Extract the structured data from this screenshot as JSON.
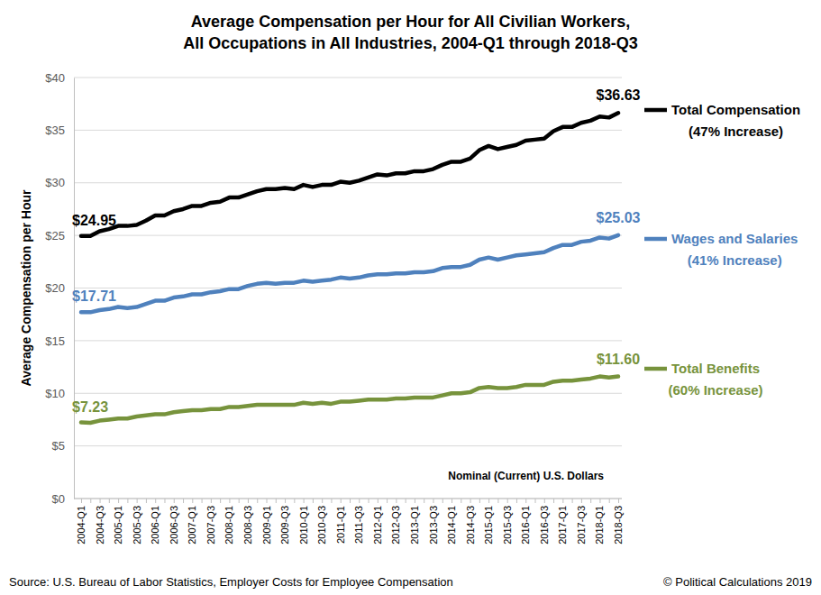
{
  "chart_data": {
    "type": "line",
    "title": [
      "Average Compensation per Hour for All Civilian Workers,",
      "All Occupations in All Industries, 2004-Q1 through 2018-Q3"
    ],
    "y_label": "Average Compensation per Hour",
    "units_note": "Nominal (Current) U.S. Dollars",
    "source": "Source: U.S. Bureau of Labor Statistics, Employer Costs for Employee Compensation",
    "credit": "© Political Calculations 2019",
    "categories": [
      "2004-Q1",
      null,
      "2004-Q3",
      null,
      "2005-Q1",
      null,
      "2005-Q3",
      null,
      "2006-Q1",
      null,
      "2006-Q3",
      null,
      "2007-Q1",
      null,
      "2007-Q3",
      null,
      "2008-Q1",
      null,
      "2008-Q3",
      null,
      "2009-Q1",
      null,
      "2009-Q3",
      null,
      "2010-Q1",
      null,
      "2010-Q3",
      null,
      "2011-Q1",
      null,
      "2011-Q3",
      null,
      "2012-Q1",
      null,
      "2012-Q3",
      null,
      "2013-Q1",
      null,
      "2013-Q3",
      null,
      "2014-Q1",
      null,
      "2014-Q3",
      null,
      "2015-Q1",
      null,
      "2015-Q3",
      null,
      "2016-Q1",
      null,
      "2016-Q3",
      null,
      "2017-Q1",
      null,
      "2017-Q3",
      null,
      "2018-Q1",
      null,
      "2018-Q3"
    ],
    "series": [
      {
        "name": "Total Compensation",
        "annotation": "(47% Increase)",
        "color": "#000000",
        "values": [
          24.95,
          24.95,
          25.4,
          25.6,
          25.9,
          25.9,
          26.0,
          26.4,
          26.9,
          26.9,
          27.3,
          27.5,
          27.8,
          27.8,
          28.1,
          28.2,
          28.6,
          28.6,
          28.9,
          29.2,
          29.4,
          29.4,
          29.5,
          29.4,
          29.8,
          29.6,
          29.8,
          29.8,
          30.1,
          30.0,
          30.2,
          30.5,
          30.8,
          30.7,
          30.9,
          30.9,
          31.1,
          31.1,
          31.3,
          31.7,
          32.0,
          32.0,
          32.3,
          33.1,
          33.5,
          33.2,
          33.4,
          33.6,
          34.0,
          34.1,
          34.2,
          34.9,
          35.3,
          35.3,
          35.7,
          35.9,
          36.3,
          36.2,
          36.63
        ],
        "value_labels": [
          "$24.95",
          null,
          null,
          null,
          null,
          null,
          null,
          null,
          null,
          null,
          null,
          null,
          null,
          null,
          null,
          null,
          null,
          null,
          null,
          null,
          null,
          null,
          null,
          null,
          null,
          null,
          null,
          null,
          null,
          null,
          null,
          null,
          null,
          null,
          null,
          null,
          null,
          null,
          null,
          null,
          null,
          null,
          null,
          null,
          null,
          null,
          null,
          null,
          null,
          null,
          null,
          null,
          null,
          null,
          null,
          null,
          null,
          null,
          "$36.63"
        ]
      },
      {
        "name": "Wages and Salaries",
        "annotation": "(41% Increase)",
        "color": "#4f81bd",
        "values": [
          17.71,
          17.7,
          17.9,
          18.0,
          18.2,
          18.1,
          18.2,
          18.5,
          18.8,
          18.8,
          19.1,
          19.2,
          19.4,
          19.4,
          19.6,
          19.7,
          19.9,
          19.9,
          20.2,
          20.4,
          20.5,
          20.4,
          20.5,
          20.5,
          20.7,
          20.6,
          20.7,
          20.8,
          21.0,
          20.9,
          21.0,
          21.2,
          21.3,
          21.3,
          21.4,
          21.4,
          21.5,
          21.5,
          21.6,
          21.9,
          22.0,
          22.0,
          22.2,
          22.7,
          22.9,
          22.7,
          22.9,
          23.1,
          23.2,
          23.3,
          23.4,
          23.8,
          24.1,
          24.1,
          24.4,
          24.5,
          24.8,
          24.7,
          25.03
        ],
        "value_labels": [
          "$17.71",
          null,
          null,
          null,
          null,
          null,
          null,
          null,
          null,
          null,
          null,
          null,
          null,
          null,
          null,
          null,
          null,
          null,
          null,
          null,
          null,
          null,
          null,
          null,
          null,
          null,
          null,
          null,
          null,
          null,
          null,
          null,
          null,
          null,
          null,
          null,
          null,
          null,
          null,
          null,
          null,
          null,
          null,
          null,
          null,
          null,
          null,
          null,
          null,
          null,
          null,
          null,
          null,
          null,
          null,
          null,
          null,
          null,
          "$25.03"
        ]
      },
      {
        "name": "Total Benefits",
        "annotation": "(60% Increase)",
        "color": "#77933c",
        "values": [
          7.23,
          7.2,
          7.4,
          7.5,
          7.6,
          7.6,
          7.8,
          7.9,
          8.0,
          8.0,
          8.2,
          8.3,
          8.4,
          8.4,
          8.5,
          8.5,
          8.7,
          8.7,
          8.8,
          8.9,
          8.9,
          8.9,
          8.9,
          8.9,
          9.1,
          9.0,
          9.1,
          9.0,
          9.2,
          9.2,
          9.3,
          9.4,
          9.4,
          9.4,
          9.5,
          9.5,
          9.6,
          9.6,
          9.6,
          9.8,
          10.0,
          10.0,
          10.1,
          10.5,
          10.6,
          10.5,
          10.5,
          10.6,
          10.8,
          10.8,
          10.8,
          11.1,
          11.2,
          11.2,
          11.3,
          11.4,
          11.6,
          11.5,
          11.6
        ],
        "value_labels": [
          "$7.23",
          null,
          null,
          null,
          null,
          null,
          null,
          null,
          null,
          null,
          null,
          null,
          null,
          null,
          null,
          null,
          null,
          null,
          null,
          null,
          null,
          null,
          null,
          null,
          null,
          null,
          null,
          null,
          null,
          null,
          null,
          null,
          null,
          null,
          null,
          null,
          null,
          null,
          null,
          null,
          null,
          null,
          null,
          null,
          null,
          null,
          null,
          null,
          null,
          null,
          null,
          null,
          null,
          null,
          null,
          null,
          null,
          null,
          "$11.60"
        ]
      }
    ],
    "ylim": [
      0,
      40
    ],
    "yticks": [
      {
        "value": 0,
        "label": "$0"
      },
      {
        "value": 5,
        "label": "$5"
      },
      {
        "value": 10,
        "label": "$10"
      },
      {
        "value": 15,
        "label": "$15"
      },
      {
        "value": 20,
        "label": "$20"
      },
      {
        "value": 25,
        "label": "$25"
      },
      {
        "value": 30,
        "label": "$30"
      },
      {
        "value": 35,
        "label": "$35"
      },
      {
        "value": 40,
        "label": "$40"
      }
    ],
    "grid": true,
    "legend": "right"
  }
}
